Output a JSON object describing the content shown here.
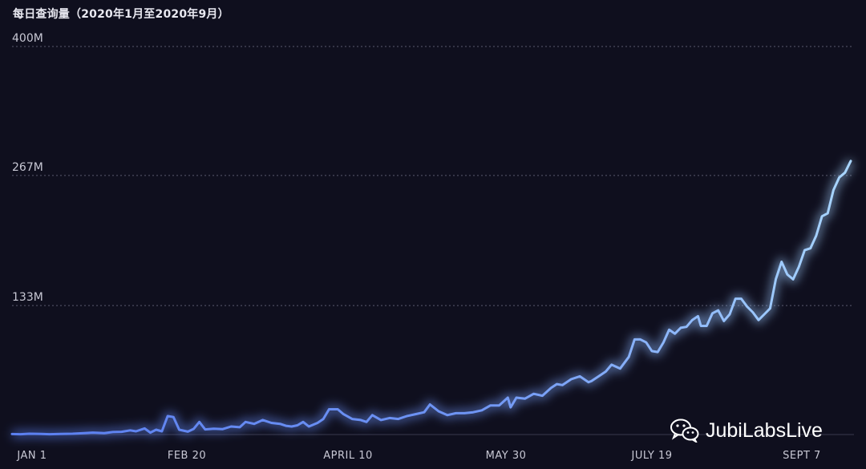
{
  "title": "每日查询量（2020年1月至2020年9月）",
  "watermark": "JubiLabsLive",
  "colors": {
    "background": "#0f0f1e",
    "line_start": "#5b7ff0",
    "line_end": "#a9d6ff",
    "grid": "#5a5a6e",
    "axis_text": "#c8c8d4"
  },
  "chart_data": {
    "type": "line",
    "title": "每日查询量（2020年1月至2020年9月）",
    "xlabel": "",
    "ylabel": "",
    "x_ticks": [
      "JAN 1",
      "FEB 20",
      "APRIL 10",
      "MAY 30",
      "JULY 19",
      "SEPT 7"
    ],
    "y_ticks": [
      "400M",
      "267M",
      "133M"
    ],
    "ylim": [
      0,
      400
    ],
    "y_unit": "M",
    "grid": true,
    "series": [
      {
        "points": [
          [
            "2020-01-01",
            0.5
          ],
          [
            "2020-01-04",
            0.3
          ],
          [
            "2020-01-07",
            0.8
          ],
          [
            "2020-01-11",
            0.6
          ],
          [
            "2020-01-14",
            0.3
          ],
          [
            "2020-01-18",
            0.6
          ],
          [
            "2020-01-22",
            0.8
          ],
          [
            "2020-01-26",
            1.4
          ],
          [
            "2020-01-29",
            2.0
          ],
          [
            "2020-02-02",
            1.5
          ],
          [
            "2020-02-05",
            2.6
          ],
          [
            "2020-02-08",
            2.8
          ],
          [
            "2020-02-11",
            4.3
          ],
          [
            "2020-02-13",
            3.3
          ],
          [
            "2020-02-16",
            6.3
          ],
          [
            "2020-02-18",
            2.0
          ],
          [
            "2020-02-20",
            5.0
          ],
          [
            "2020-02-22",
            3.3
          ],
          [
            "2020-02-24",
            19
          ],
          [
            "2020-02-26",
            18
          ],
          [
            "2020-02-28",
            5.0
          ],
          [
            "2020-03-02",
            3.0
          ],
          [
            "2020-03-04",
            5.8
          ],
          [
            "2020-03-06",
            13
          ],
          [
            "2020-03-08",
            5.3
          ],
          [
            "2020-03-11",
            6.0
          ],
          [
            "2020-03-14",
            5.5
          ],
          [
            "2020-03-17",
            8.3
          ],
          [
            "2020-03-20",
            7.5
          ],
          [
            "2020-03-22",
            13
          ],
          [
            "2020-03-25",
            11
          ],
          [
            "2020-03-28",
            15
          ],
          [
            "2020-03-31",
            12
          ],
          [
            "2020-04-03",
            11
          ],
          [
            "2020-04-05",
            9.0
          ],
          [
            "2020-04-07",
            8.3
          ],
          [
            "2020-04-09",
            9.5
          ],
          [
            "2020-04-11",
            13
          ],
          [
            "2020-04-13",
            8.3
          ],
          [
            "2020-04-16",
            12
          ],
          [
            "2020-04-18",
            16
          ],
          [
            "2020-04-20",
            26
          ],
          [
            "2020-04-23",
            26
          ],
          [
            "2020-04-25",
            21
          ],
          [
            "2020-04-28",
            16
          ],
          [
            "2020-05-01",
            15
          ],
          [
            "2020-05-03",
            13
          ],
          [
            "2020-05-05",
            20
          ],
          [
            "2020-05-08",
            15
          ],
          [
            "2020-05-11",
            17
          ],
          [
            "2020-05-14",
            16
          ],
          [
            "2020-05-17",
            19
          ],
          [
            "2020-05-20",
            21
          ],
          [
            "2020-05-23",
            23
          ],
          [
            "2020-05-25",
            31
          ],
          [
            "2020-05-28",
            24
          ],
          [
            "2020-05-31",
            20
          ],
          [
            "2020-06-03",
            22
          ],
          [
            "2020-06-06",
            22
          ],
          [
            "2020-06-09",
            23
          ],
          [
            "2020-06-12",
            25
          ],
          [
            "2020-06-15",
            30
          ],
          [
            "2020-06-18",
            30
          ],
          [
            "2020-06-21",
            38
          ],
          [
            "2020-06-22",
            28
          ],
          [
            "2020-06-24",
            38
          ],
          [
            "2020-06-27",
            37
          ],
          [
            "2020-06-30",
            42
          ],
          [
            "2020-07-03",
            40
          ],
          [
            "2020-07-06",
            48
          ],
          [
            "2020-07-08",
            52
          ],
          [
            "2020-07-10",
            51
          ],
          [
            "2020-07-13",
            57
          ],
          [
            "2020-07-16",
            60
          ],
          [
            "2020-07-19",
            54
          ],
          [
            "2020-07-20",
            55
          ],
          [
            "2020-07-23",
            61
          ],
          [
            "2020-07-25",
            65
          ],
          [
            "2020-07-27",
            72
          ],
          [
            "2020-07-30",
            68
          ],
          [
            "2020-08-02",
            80
          ],
          [
            "2020-08-04",
            98
          ],
          [
            "2020-08-06",
            98
          ],
          [
            "2020-08-08",
            95
          ],
          [
            "2020-08-10",
            86
          ],
          [
            "2020-08-12",
            85
          ],
          [
            "2020-08-14",
            95
          ],
          [
            "2020-08-16",
            108
          ],
          [
            "2020-08-18",
            104
          ],
          [
            "2020-08-20",
            110
          ],
          [
            "2020-08-22",
            111
          ],
          [
            "2020-08-24",
            118
          ],
          [
            "2020-08-26",
            122
          ],
          [
            "2020-08-27",
            112
          ],
          [
            "2020-08-29",
            112
          ],
          [
            "2020-08-31",
            125
          ],
          [
            "2020-09-02",
            128
          ],
          [
            "2020-09-04",
            117
          ],
          [
            "2020-09-06",
            124
          ],
          [
            "2020-09-08",
            140
          ],
          [
            "2020-09-10",
            140
          ],
          [
            "2020-09-12",
            132
          ],
          [
            "2020-09-14",
            126
          ],
          [
            "2020-09-16",
            118
          ],
          [
            "2020-09-18",
            124
          ],
          [
            "2020-09-20",
            130
          ],
          [
            "2020-09-22",
            160
          ],
          [
            "2020-09-24",
            178
          ],
          [
            "2020-09-26",
            165
          ],
          [
            "2020-09-28",
            160
          ],
          [
            "2020-09-30",
            173
          ],
          [
            "2020-10-02",
            190
          ],
          [
            "2020-10-04",
            192
          ],
          [
            "2020-10-06",
            205
          ],
          [
            "2020-10-08",
            225
          ],
          [
            "2020-10-10",
            228
          ],
          [
            "2020-10-12",
            252
          ],
          [
            "2020-10-14",
            265
          ],
          [
            "2020-10-16",
            270
          ],
          [
            "2020-10-18",
            282
          ]
        ]
      }
    ]
  }
}
